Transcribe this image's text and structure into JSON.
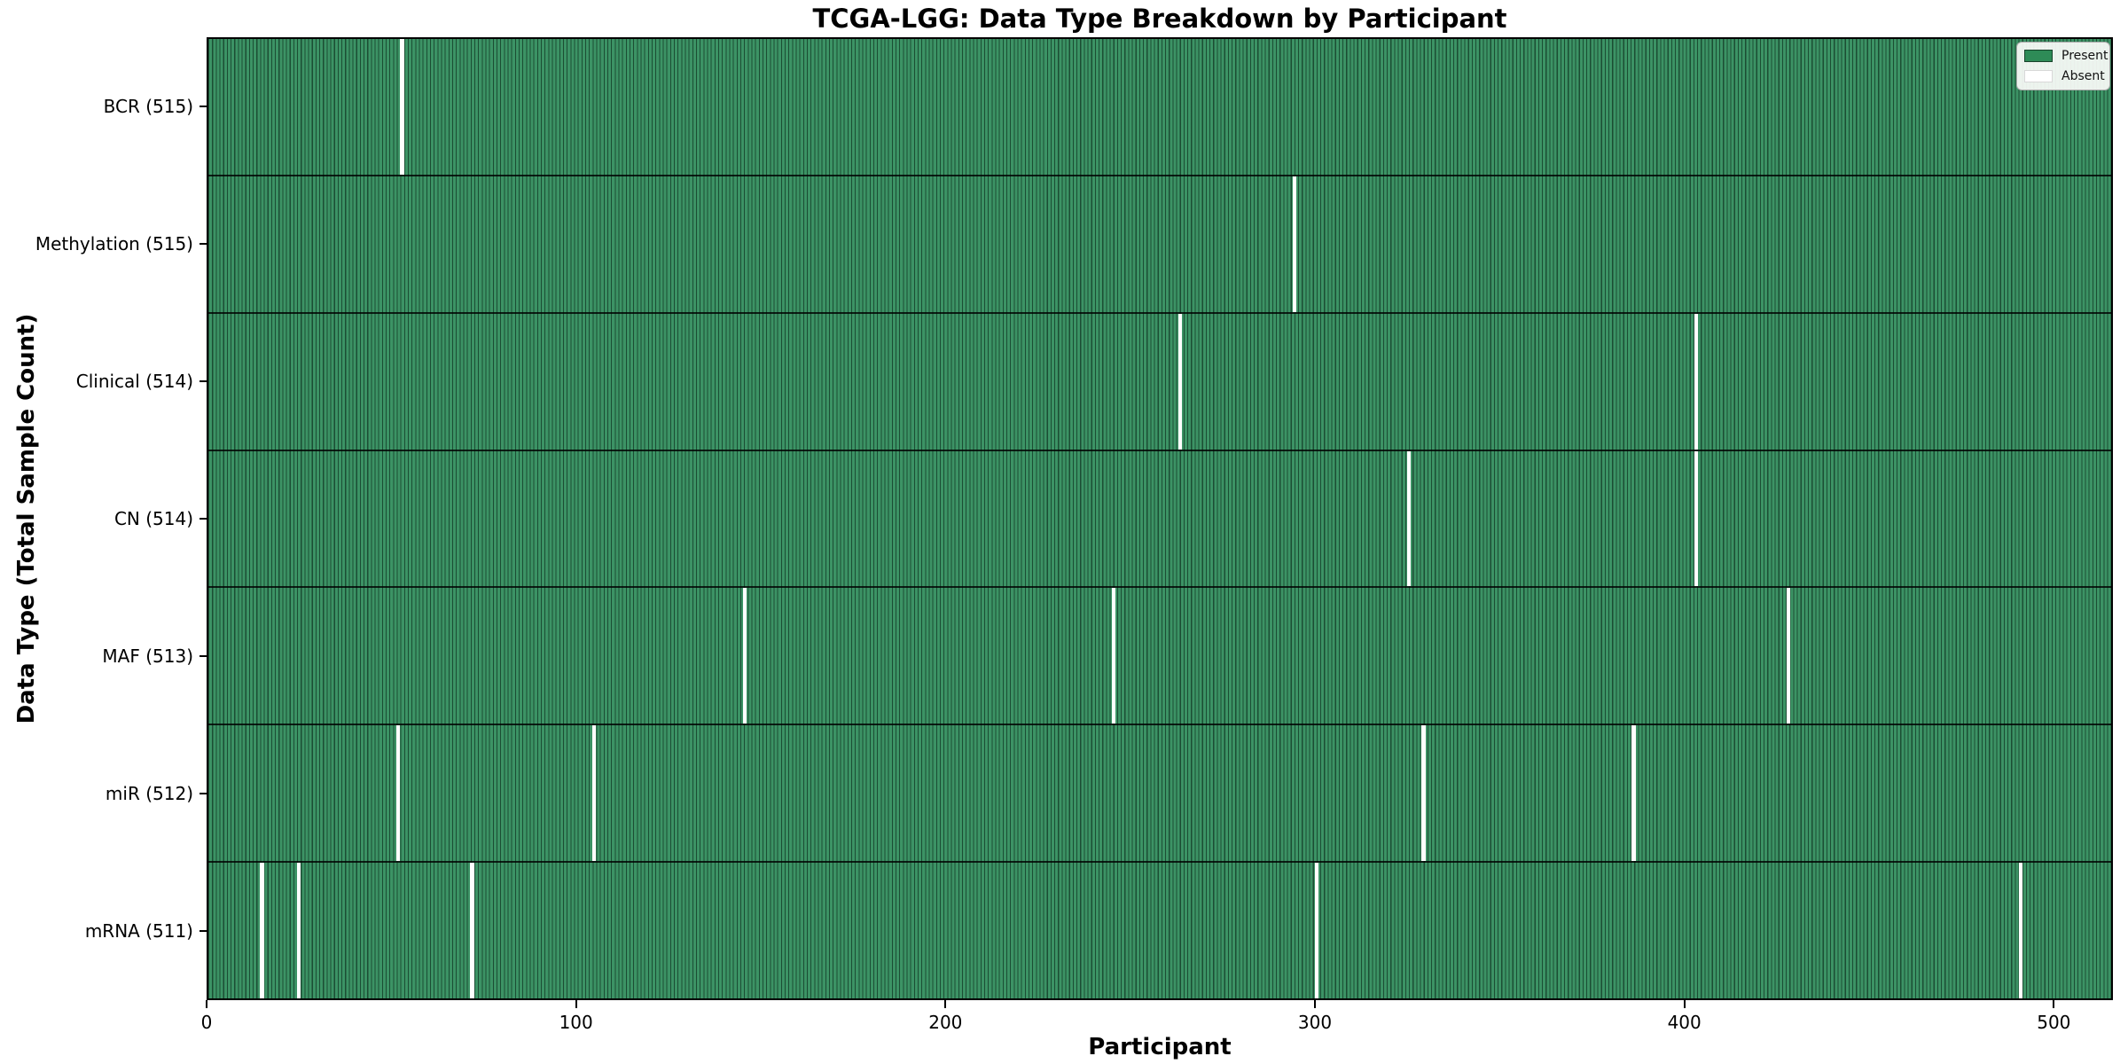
{
  "figure": {
    "title": "TCGA-LGG: Data Type Breakdown by Participant",
    "xlabel": "Participant",
    "ylabel": "Data Type (Total Sample Count)"
  },
  "legend": {
    "items": [
      {
        "label": "Present",
        "color": "#2e8b57"
      },
      {
        "label": "Absent",
        "color": "#ffffff"
      }
    ]
  },
  "chart_data": {
    "type": "heatmap",
    "title": "TCGA-LGG: Data Type Breakdown by Participant",
    "xlabel": "Participant",
    "ylabel": "Data Type (Total Sample Count)",
    "x_ticks": [
      0,
      100,
      200,
      300,
      400,
      500
    ],
    "xlim": [
      0,
      516
    ],
    "total_participants": 516,
    "grid": false,
    "legend_position": "upper-right",
    "colors": {
      "present": "#2e8b57",
      "absent": "#ffffff"
    },
    "rows": [
      {
        "label": "BCR (515)",
        "data_type": "BCR",
        "present_count": 515,
        "absent_participants": [
          52
        ]
      },
      {
        "label": "Methylation (515)",
        "data_type": "Methylation",
        "present_count": 515,
        "absent_participants": [
          294
        ]
      },
      {
        "label": "Clinical (514)",
        "data_type": "Clinical",
        "present_count": 514,
        "absent_participants": [
          263,
          403
        ]
      },
      {
        "label": "CN (514)",
        "data_type": "CN",
        "present_count": 514,
        "absent_participants": [
          325,
          403
        ]
      },
      {
        "label": "MAF (513)",
        "data_type": "MAF",
        "present_count": 513,
        "absent_participants": [
          145,
          245,
          428
        ]
      },
      {
        "label": "miR (512)",
        "data_type": "miR",
        "present_count": 512,
        "absent_participants": [
          51,
          104,
          329,
          386
        ]
      },
      {
        "label": "mRNA (511)",
        "data_type": "mRNA",
        "present_count": 511,
        "absent_participants": [
          14,
          24,
          71,
          300,
          491
        ]
      }
    ]
  }
}
